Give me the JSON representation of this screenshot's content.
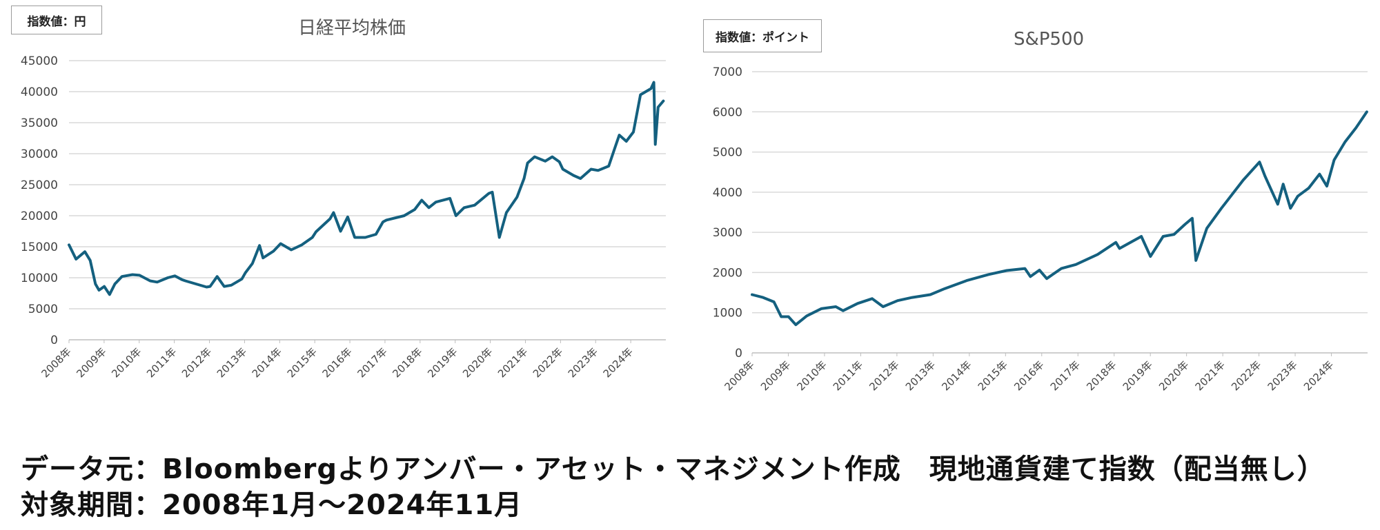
{
  "chart_data": [
    {
      "type": "line",
      "title": "日経平均株価",
      "unit_label": "指数値：円",
      "ylim": [
        0,
        45000
      ],
      "yticks": [
        0,
        5000,
        10000,
        15000,
        20000,
        25000,
        30000,
        35000,
        40000,
        45000
      ],
      "xticks": [
        "2008年",
        "2009年",
        "2010年",
        "2011年",
        "2012年",
        "2013年",
        "2014年",
        "2015年",
        "2016年",
        "2017年",
        "2018年",
        "2019年",
        "2020年",
        "2021年",
        "2022年",
        "2023年",
        "2024年"
      ],
      "grid": true,
      "series": [
        {
          "color": "#14607f",
          "x": [
            2008.0,
            2008.2,
            2008.45,
            2008.6,
            2008.75,
            2008.85,
            2009.0,
            2009.15,
            2009.3,
            2009.5,
            2009.8,
            2010.0,
            2010.3,
            2010.5,
            2010.8,
            2011.0,
            2011.2,
            2011.3,
            2011.6,
            2011.9,
            2012.0,
            2012.2,
            2012.4,
            2012.6,
            2012.9,
            2013.0,
            2013.2,
            2013.4,
            2013.5,
            2013.8,
            2014.0,
            2014.3,
            2014.6,
            2014.9,
            2015.0,
            2015.4,
            2015.5,
            2015.7,
            2015.9,
            2016.1,
            2016.4,
            2016.7,
            2016.9,
            2017.0,
            2017.5,
            2017.8,
            2018.0,
            2018.2,
            2018.4,
            2018.8,
            2018.97,
            2019.2,
            2019.5,
            2019.9,
            2020.0,
            2020.2,
            2020.4,
            2020.7,
            2020.9,
            2021.0,
            2021.2,
            2021.5,
            2021.7,
            2021.9,
            2022.0,
            2022.3,
            2022.5,
            2022.8,
            2023.0,
            2023.3,
            2023.45,
            2023.6,
            2023.8,
            2024.0,
            2024.2,
            2024.5,
            2024.58,
            2024.62,
            2024.7,
            2024.85
          ],
          "y": [
            15300,
            13000,
            14200,
            12800,
            9000,
            8000,
            8600,
            7300,
            9000,
            10200,
            10500,
            10400,
            9500,
            9300,
            10000,
            10300,
            9700,
            9500,
            9000,
            8500,
            8600,
            10200,
            8600,
            8800,
            9800,
            10800,
            12300,
            15200,
            13200,
            14300,
            15500,
            14500,
            15300,
            16500,
            17400,
            19500,
            20500,
            17500,
            19800,
            16500,
            16500,
            17000,
            19000,
            19300,
            20000,
            21000,
            22500,
            21300,
            22200,
            22800,
            20000,
            21300,
            21700,
            23600,
            23800,
            16500,
            20500,
            23000,
            26000,
            28500,
            29500,
            28800,
            29500,
            28700,
            27500,
            26500,
            26000,
            27500,
            27300,
            28000,
            30500,
            33000,
            32000,
            33500,
            39500,
            40500,
            41500,
            31500,
            37500,
            38500
          ]
        }
      ]
    },
    {
      "type": "line",
      "title": "S&P500",
      "unit_label": "指数値：ポイント",
      "ylim": [
        0,
        7000
      ],
      "yticks": [
        0,
        1000,
        2000,
        3000,
        4000,
        5000,
        6000,
        7000
      ],
      "xticks": [
        "2008年",
        "2009年",
        "2010年",
        "2011年",
        "2012年",
        "2013年",
        "2014年",
        "2015年",
        "2016年",
        "2017年",
        "2018年",
        "2019年",
        "2020年",
        "2021年",
        "2022年",
        "2023年",
        "2024年"
      ],
      "grid": true,
      "series": [
        {
          "color": "#14607f",
          "x": [
            2008.0,
            2008.3,
            2008.6,
            2008.8,
            2009.0,
            2009.2,
            2009.5,
            2009.9,
            2010.3,
            2010.5,
            2010.9,
            2011.3,
            2011.6,
            2012.0,
            2012.4,
            2012.9,
            2013.3,
            2013.9,
            2014.5,
            2015.0,
            2015.5,
            2015.65,
            2015.9,
            2016.1,
            2016.5,
            2016.9,
            2017.5,
            2018.0,
            2018.1,
            2018.7,
            2018.95,
            2019.3,
            2019.6,
            2019.9,
            2020.1,
            2020.2,
            2020.5,
            2020.9,
            2021.5,
            2021.95,
            2022.1,
            2022.45,
            2022.6,
            2022.8,
            2023.0,
            2023.3,
            2023.6,
            2023.8,
            2024.0,
            2024.3,
            2024.6,
            2024.9
          ],
          "y": [
            1450,
            1380,
            1270,
            900,
            900,
            700,
            920,
            1100,
            1150,
            1050,
            1230,
            1350,
            1150,
            1300,
            1380,
            1450,
            1600,
            1800,
            1950,
            2050,
            2100,
            1900,
            2060,
            1850,
            2100,
            2200,
            2450,
            2750,
            2600,
            2900,
            2400,
            2900,
            2950,
            3200,
            3350,
            2300,
            3100,
            3600,
            4300,
            4750,
            4400,
            3700,
            4200,
            3600,
            3900,
            4100,
            4450,
            4150,
            4800,
            5250,
            5600,
            6000
          ]
        }
      ]
    }
  ],
  "footer": {
    "line1": "データ元：Bloombergよりアンバー・アセット・マネジメント作成　現地通貨建て指数（配当無し）",
    "line2": "対象期間：2008年1月～2024年11月"
  }
}
